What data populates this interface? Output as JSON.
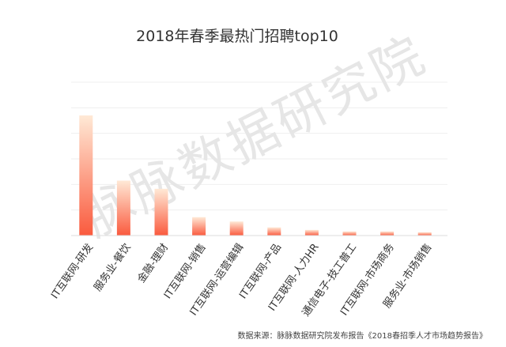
{
  "chart_data": {
    "type": "bar",
    "title": "2018年春季最热门招聘top10",
    "categories": [
      "IT互联网-研发",
      "服务业-餐饮",
      "金融-理财",
      "IT互联网-销售",
      "IT互联网-运营编辑",
      "IT互联网-产品",
      "IT互联网-人力HR",
      "通信电子-技工普工",
      "IT互联网-市场商务",
      "服务业-市场销售"
    ],
    "values": [
      47,
      21.5,
      18.3,
      7.2,
      5.5,
      3.2,
      2.2,
      1.6,
      1.6,
      1.3
    ],
    "ylim": [
      0,
      60
    ],
    "grid": true,
    "yticks_visible": false,
    "bar_gradient": [
      "#ffe9d6",
      "#fa5a3e"
    ]
  },
  "watermark": "脉脉数据研究院",
  "source_note": "数据来源：脉脉数据研究院发布报告《2018春招季人才市场趋势报告》"
}
